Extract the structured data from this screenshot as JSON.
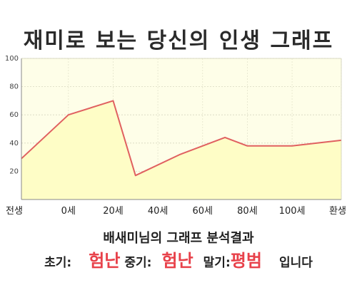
{
  "chart_data": {
    "type": "area",
    "title": "재미로 보는 당신의 인생 그래프",
    "x": [
      "전생",
      "0세",
      "20세",
      "40세",
      "60세",
      "80세",
      "100세",
      "환생"
    ],
    "points": [
      {
        "x": "전생",
        "y": 29
      },
      {
        "x": "0세",
        "y": 60
      },
      {
        "x": "20세",
        "y": 70
      },
      {
        "x": "30세",
        "y": 17
      },
      {
        "x": "50세",
        "y": 32
      },
      {
        "x": "70세",
        "y": 44
      },
      {
        "x": "80세",
        "y": 38
      },
      {
        "x": "100세",
        "y": 38
      },
      {
        "x": "환생",
        "y": 42
      }
    ],
    "ylim": [
      0,
      100
    ],
    "yticks": [
      20,
      40,
      60,
      80,
      100
    ],
    "grid": true,
    "colors": {
      "line": "#e06060",
      "fill": "#fefdc6",
      "plot_bg": "#fefee8"
    }
  },
  "summary": {
    "line1": "배새미님의 그래프 분석결과",
    "early_label": "초기:",
    "early_value": "험난",
    "middle_label": "중기:",
    "middle_value": "험난",
    "late_label": "말기:",
    "late_value": "평범",
    "ending": "입니다"
  },
  "colors": {
    "highlight": "#e8414a"
  }
}
